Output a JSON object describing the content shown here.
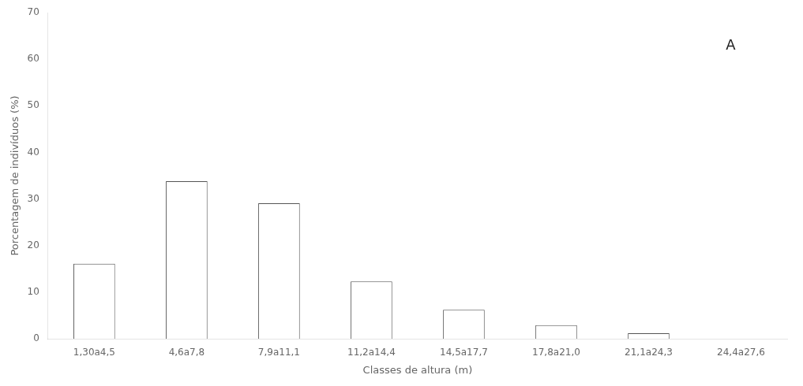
{
  "chart_data": {
    "type": "bar",
    "categories": [
      "1,30a4,5",
      "4,6a7,8",
      "7,9a11,1",
      "11,2a14,4",
      "14,5a17,7",
      "17,8a21,0",
      "21,1a24,3",
      "24,4a27,6"
    ],
    "values": [
      16.1,
      33.8,
      29.1,
      12.3,
      6.2,
      2.9,
      1.2,
      0.0
    ],
    "color": "#ffffff",
    "xlabel": "Classes de altura (m)",
    "ylabel": "Porcentagem de indivíduos (%)",
    "ylim": [
      0,
      70
    ],
    "yticks": [
      0,
      10,
      20,
      30,
      40,
      50,
      60,
      70
    ],
    "annotation": "A",
    "grid": false
  }
}
